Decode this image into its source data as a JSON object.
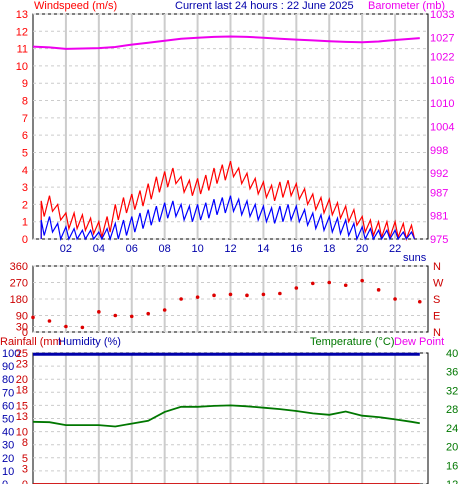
{
  "header": {
    "windspeed_label": "Windspeed (m/s)",
    "title": "Current last 24 hours : 22 June 2025",
    "barometer_label": "Barometer (mb)"
  },
  "colors": {
    "wind_gust": "#ff0000",
    "wind_avg": "#0000ff",
    "barometer": "#ee00ee",
    "direction": "#dd0000",
    "rainfall": "#cc0000",
    "humidity": "#0000aa",
    "temperature": "#007700",
    "dewpoint": "#ee00ee",
    "grid": "#cccccc",
    "axis": "#000000"
  },
  "chart_data": [
    {
      "type": "line",
      "name": "wind-barometer",
      "x_ticks": [
        "02",
        "04",
        "06",
        "08",
        "10",
        "12",
        "14",
        "16",
        "18",
        "20",
        "22"
      ],
      "x_suffix": "suns",
      "ylim_left": [
        0,
        13
      ],
      "yticks_left": [
        0,
        1,
        2,
        3,
        4,
        5,
        6,
        7,
        8,
        9,
        10,
        11,
        12,
        13
      ],
      "ylim_right": [
        975,
        1033
      ],
      "yticks_right": [
        975,
        981,
        987,
        992,
        998,
        1004,
        1010,
        1016,
        1022,
        1027,
        1033
      ],
      "series": [
        {
          "name": "Windspeed (m/s)",
          "role": "gust",
          "x": [
            0.5,
            1,
            1.5,
            2,
            2.5,
            3,
            3.5,
            4,
            4.5,
            5,
            5.5,
            6,
            6.5,
            7,
            7.5,
            8,
            8.5,
            9,
            9.5,
            10,
            10.5,
            11,
            11.5,
            12,
            12.5,
            13,
            13.5,
            14,
            14.5,
            15,
            15.5,
            16,
            16.5,
            17,
            17.5,
            18,
            18.5,
            19,
            19.5,
            20,
            20.5,
            21,
            21.5,
            22,
            22.5,
            23
          ],
          "values": [
            2.2,
            2.5,
            2.0,
            1.5,
            1.5,
            1.4,
            1.2,
            1.0,
            1.3,
            2.0,
            2.4,
            2.6,
            2.8,
            3.2,
            3.6,
            3.9,
            4.1,
            3.6,
            3.4,
            3.5,
            3.7,
            4.1,
            4.3,
            4.5,
            4.1,
            3.8,
            3.5,
            3.3,
            3.1,
            3.3,
            3.4,
            3.2,
            2.9,
            2.6,
            2.4,
            2.3,
            2.1,
            1.9,
            1.7,
            1.3,
            1.1,
            1.0,
            1.0,
            1.0,
            0.9,
            0.8
          ]
        },
        {
          "name": "",
          "role": "average",
          "x": [
            0.5,
            1,
            1.5,
            2,
            2.5,
            3,
            3.5,
            4,
            4.5,
            5,
            5.5,
            6,
            6.5,
            7,
            7.5,
            8,
            8.5,
            9,
            9.5,
            10,
            10.5,
            11,
            11.5,
            12,
            12.5,
            13,
            13.5,
            14,
            14.5,
            15,
            15.5,
            16,
            16.5,
            17,
            17.5,
            18,
            18.5,
            19,
            19.5,
            20,
            20.5,
            21,
            21.5,
            22,
            22.5,
            23
          ],
          "values": [
            1.1,
            1.3,
            0.9,
            0.7,
            0.6,
            0.5,
            0.5,
            0.4,
            0.6,
            0.9,
            1.1,
            1.3,
            1.5,
            1.7,
            1.9,
            2.1,
            2.2,
            2.0,
            1.9,
            2.0,
            2.1,
            2.3,
            2.4,
            2.5,
            2.3,
            2.2,
            2.0,
            1.9,
            1.8,
            1.9,
            2.0,
            1.9,
            1.7,
            1.5,
            1.4,
            1.3,
            1.2,
            1.1,
            0.9,
            0.7,
            0.6,
            0.5,
            0.5,
            0.5,
            0.4,
            0.4
          ]
        },
        {
          "name": "Barometer (mb)",
          "role": "pressure",
          "x": [
            0,
            1,
            2,
            3,
            4,
            5,
            6,
            7,
            8,
            9,
            10,
            11,
            12,
            13,
            14,
            15,
            16,
            17,
            18,
            19,
            20,
            21,
            22,
            23.5
          ],
          "values": [
            1024.6,
            1024.4,
            1024.0,
            1024.1,
            1024.2,
            1024.5,
            1025.1,
            1025.6,
            1026.1,
            1026.6,
            1026.9,
            1027.1,
            1027.2,
            1027.1,
            1026.9,
            1026.6,
            1026.4,
            1026.2,
            1026.0,
            1025.8,
            1025.7,
            1025.9,
            1026.3,
            1026.8
          ]
        }
      ]
    },
    {
      "type": "scatter",
      "name": "wind-direction",
      "ylim": [
        0,
        360
      ],
      "yticks": [
        0,
        30,
        90,
        180,
        270,
        360
      ],
      "right_labels": [
        "N",
        "W",
        "S",
        "E",
        "N"
      ],
      "series": [
        {
          "name": "",
          "x": [
            0,
            1,
            2,
            3,
            4,
            5,
            6,
            7,
            8,
            9,
            10,
            11,
            12,
            13,
            14,
            15,
            16,
            17,
            18,
            19,
            20,
            21,
            22,
            23.5
          ],
          "values": [
            80,
            60,
            30,
            25,
            110,
            90,
            85,
            100,
            120,
            180,
            190,
            200,
            205,
            200,
            205,
            210,
            240,
            265,
            270,
            255,
            280,
            230,
            180,
            165
          ]
        }
      ]
    },
    {
      "type": "line",
      "name": "rain-humidity-temperature",
      "ylim_rain": [
        0,
        25
      ],
      "yticks_rain": [
        0,
        3,
        5,
        8,
        10,
        13,
        15,
        18,
        20,
        23,
        25
      ],
      "ylim_humidity": [
        0,
        100
      ],
      "yticks_humidity": [
        0,
        10,
        20,
        30,
        40,
        50,
        60,
        70,
        80,
        90,
        100
      ],
      "ylim_temperature": [
        12,
        40
      ],
      "yticks_temperature": [
        12,
        16,
        20,
        24,
        28,
        32,
        36,
        40
      ],
      "series": [
        {
          "name": "Rainfall (mm",
          "role": "rain",
          "x": [
            0,
            23.5
          ],
          "values": [
            0,
            0
          ]
        },
        {
          "name": "Humidity (%)",
          "role": "humidity",
          "x": [
            0,
            23.5
          ],
          "values": [
            99,
            99
          ]
        },
        {
          "name": "Temperature (°C)",
          "role": "temperature",
          "x": [
            0,
            1,
            2,
            3,
            4,
            5,
            6,
            7,
            8,
            9,
            10,
            11,
            12,
            13,
            14,
            15,
            16,
            17,
            18,
            19,
            20,
            21,
            22,
            23,
            23.5
          ],
          "values": [
            25.3,
            25.2,
            24.6,
            24.6,
            24.6,
            24.3,
            24.9,
            25.5,
            27.4,
            28.5,
            28.5,
            28.7,
            28.8,
            28.6,
            28.3,
            28.0,
            27.6,
            27.1,
            26.8,
            27.5,
            26.6,
            26.3,
            25.8,
            25.3,
            25.0
          ]
        }
      ],
      "extra_legend": "Dew Point"
    }
  ]
}
